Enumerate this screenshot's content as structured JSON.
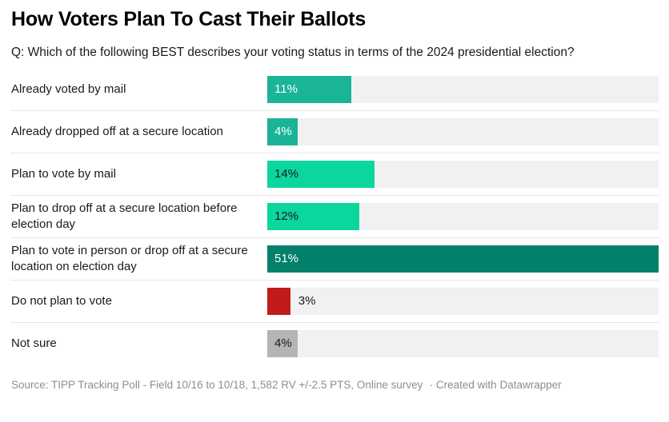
{
  "header": {
    "title": "How Voters Plan To Cast Their Ballots",
    "subtitle": "Q: Which of the following BEST describes your voting status in terms of the 2024 presidential election?"
  },
  "chart_data": {
    "type": "bar",
    "orientation": "horizontal",
    "title": "How Voters Plan To Cast Their Ballots",
    "xlabel": "",
    "ylabel": "",
    "xmax": 51,
    "grid": false,
    "legend": false,
    "track_color": "#f1f1f1",
    "categories": [
      "Already voted by mail",
      "Already dropped off at a secure location",
      "Plan to vote by mail",
      "Plan to drop off at a secure location before election day",
      "Plan to vote in person or drop off at a secure location on election day",
      "Do not plan to vote",
      "Not sure"
    ],
    "values": [
      11,
      4,
      14,
      12,
      51,
      3,
      4
    ],
    "value_labels": [
      "11%",
      "4%",
      "14%",
      "12%",
      "51%",
      "3%",
      "4%"
    ],
    "bar_colors": [
      "#1ab496",
      "#1ab496",
      "#0ad69e",
      "#0ad69e",
      "#02806a",
      "#c21b1c",
      "#b4b4b4"
    ],
    "value_label_colors": [
      "#ffffff",
      "#ffffff",
      "#1a1a1a",
      "#1a1a1a",
      "#ffffff",
      "#1a1a1a",
      "#1a1a1a"
    ],
    "value_label_inside": [
      true,
      true,
      true,
      true,
      true,
      false,
      true
    ]
  },
  "footer": {
    "source": "Source: TIPP Tracking Poll - Field 10/16 to 10/18, 1,582 RV +/-2.5 PTS, Online survey",
    "dot": "·",
    "credit": "Created with Datawrapper"
  }
}
